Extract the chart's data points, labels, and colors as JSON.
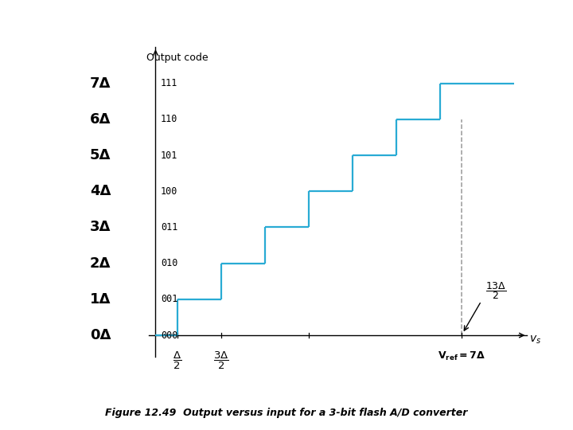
{
  "y_labels_left": [
    "0Δ",
    "1Δ",
    "2Δ",
    "3Δ",
    "4Δ",
    "5Δ",
    "6Δ",
    "7Δ"
  ],
  "y_codes": [
    "000",
    "001",
    "010",
    "011",
    "100",
    "101",
    "110",
    "111"
  ],
  "step_x_starts": [
    0.0,
    0.5,
    1.5,
    2.5,
    3.5,
    4.5,
    5.5,
    6.5
  ],
  "step_x_ends": [
    0.5,
    1.5,
    2.5,
    3.5,
    4.5,
    5.5,
    6.5,
    8.2
  ],
  "step_y_values": [
    0,
    1,
    2,
    3,
    4,
    5,
    6,
    7
  ],
  "vref_x": 7.0,
  "dashed_line_color": "#999999",
  "stair_color": "#29ABD4",
  "xlim": [
    -0.15,
    8.5
  ],
  "ylim": [
    -0.6,
    8.0
  ],
  "figsize": [
    7.2,
    5.4
  ],
  "dpi": 100,
  "caption": "Figure 12.49  Output versus input for a 3-bit flash A/D converter"
}
